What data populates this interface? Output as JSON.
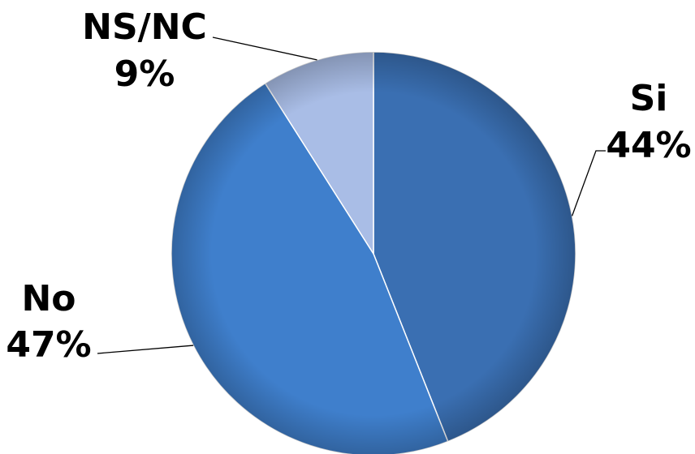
{
  "chart_data": {
    "type": "pie",
    "title": "",
    "slices": [
      {
        "label": "Si",
        "value": 44,
        "value_label": "44%",
        "color": "#3a6fb2"
      },
      {
        "label": "No",
        "value": 47,
        "value_label": "47%",
        "color": "#3f7fcc"
      },
      {
        "label": "NS/NC",
        "value": 9,
        "value_label": "9%",
        "color": "#a9bde6"
      }
    ]
  }
}
